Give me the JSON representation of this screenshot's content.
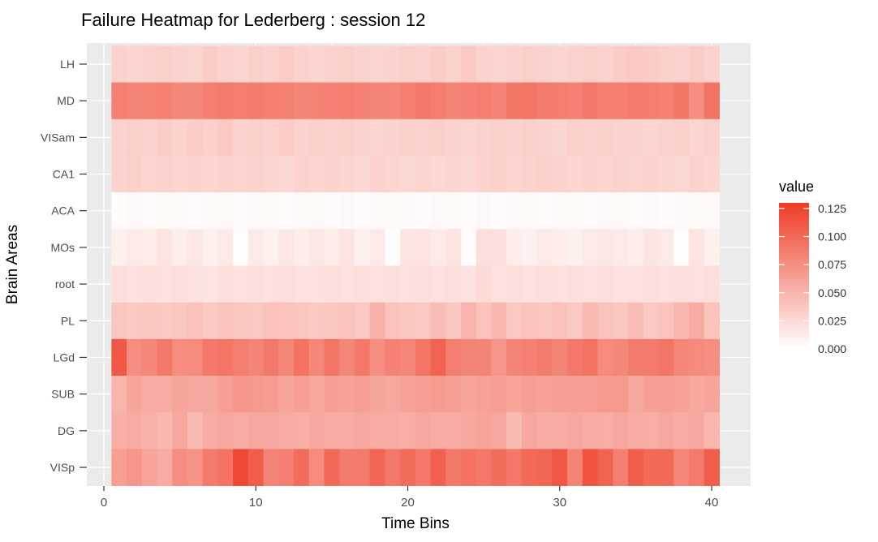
{
  "chart_data": {
    "type": "heatmap",
    "title": "Failure Heatmap for Lederberg : session 12",
    "xlabel": "Time Bins",
    "ylabel": "Brain Areas",
    "x": [
      1,
      2,
      3,
      4,
      5,
      6,
      7,
      8,
      9,
      10,
      11,
      12,
      13,
      14,
      15,
      16,
      17,
      18,
      19,
      20,
      21,
      22,
      23,
      24,
      25,
      26,
      27,
      28,
      29,
      30,
      31,
      32,
      33,
      34,
      35,
      36,
      37,
      38,
      39,
      40
    ],
    "xlim": [
      0,
      41
    ],
    "x_ticks": [
      0,
      10,
      20,
      30,
      40
    ],
    "rows": [
      "LH",
      "MD",
      "VISam",
      "CA1",
      "ACA",
      "MOs",
      "root",
      "PL",
      "LGd",
      "SUB",
      "DG",
      "VISp"
    ],
    "values": {
      "LH": [
        0.03,
        0.028,
        0.03,
        0.032,
        0.03,
        0.028,
        0.034,
        0.03,
        0.028,
        0.032,
        0.03,
        0.034,
        0.03,
        0.028,
        0.03,
        0.032,
        0.03,
        0.028,
        0.03,
        0.032,
        0.03,
        0.034,
        0.03,
        0.036,
        0.03,
        0.028,
        0.03,
        0.032,
        0.03,
        0.028,
        0.03,
        0.032,
        0.03,
        0.034,
        0.036,
        0.034,
        0.032,
        0.03,
        0.034,
        0.03
      ],
      "MD": [
        0.085,
        0.082,
        0.083,
        0.085,
        0.08,
        0.081,
        0.086,
        0.088,
        0.087,
        0.088,
        0.086,
        0.085,
        0.082,
        0.083,
        0.084,
        0.086,
        0.084,
        0.082,
        0.081,
        0.086,
        0.09,
        0.087,
        0.082,
        0.084,
        0.086,
        0.082,
        0.091,
        0.092,
        0.088,
        0.087,
        0.084,
        0.09,
        0.086,
        0.086,
        0.088,
        0.087,
        0.085,
        0.091,
        0.076,
        0.093
      ],
      "VISam": [
        0.03,
        0.032,
        0.03,
        0.034,
        0.03,
        0.034,
        0.032,
        0.036,
        0.03,
        0.032,
        0.03,
        0.034,
        0.03,
        0.032,
        0.03,
        0.032,
        0.03,
        0.028,
        0.03,
        0.032,
        0.03,
        0.032,
        0.03,
        0.028,
        0.03,
        0.032,
        0.03,
        0.032,
        0.03,
        0.028,
        0.032,
        0.03,
        0.032,
        0.03,
        0.03,
        0.028,
        0.03,
        0.032,
        0.028,
        0.03
      ],
      "CA1": [
        0.03,
        0.032,
        0.028,
        0.03,
        0.028,
        0.03,
        0.028,
        0.03,
        0.028,
        0.03,
        0.028,
        0.026,
        0.03,
        0.028,
        0.03,
        0.028,
        0.026,
        0.03,
        0.028,
        0.026,
        0.028,
        0.026,
        0.028,
        0.026,
        0.03,
        0.032,
        0.028,
        0.03,
        0.032,
        0.03,
        0.028,
        0.03,
        0.028,
        0.03,
        0.028,
        0.03,
        0.028,
        0.026,
        0.03,
        0.028
      ],
      "ACA": [
        0.003,
        0.004,
        0.003,
        0.005,
        0.004,
        0.003,
        0.004,
        0.005,
        0.003,
        0.004,
        0.005,
        0.003,
        0.004,
        0.005,
        0.003,
        0.004,
        0.003,
        0.004,
        0.005,
        0.004,
        0.003,
        0.004,
        0.005,
        0.003,
        0.004,
        0.003,
        0.004,
        0.005,
        0.003,
        0.004,
        0.005,
        0.003,
        0.004,
        0.005,
        0.003,
        0.004,
        0.003,
        0.004,
        0.005,
        0.004
      ],
      "MOs": [
        0.01,
        0.014,
        0.012,
        0.018,
        0.012,
        0.016,
        0.01,
        0.014,
        0.002,
        0.014,
        0.01,
        0.016,
        0.012,
        0.016,
        0.012,
        0.018,
        0.01,
        0.014,
        0.002,
        0.018,
        0.018,
        0.014,
        0.018,
        0.002,
        0.022,
        0.022,
        0.012,
        0.01,
        0.014,
        0.012,
        0.01,
        0.014,
        0.016,
        0.014,
        0.012,
        0.018,
        0.014,
        0.002,
        0.018,
        0.01
      ],
      "root": [
        0.022,
        0.02,
        0.022,
        0.02,
        0.022,
        0.02,
        0.018,
        0.022,
        0.02,
        0.022,
        0.02,
        0.022,
        0.02,
        0.02,
        0.022,
        0.02,
        0.022,
        0.02,
        0.022,
        0.02,
        0.022,
        0.02,
        0.022,
        0.02,
        0.024,
        0.02,
        0.022,
        0.02,
        0.022,
        0.02,
        0.022,
        0.02,
        0.022,
        0.02,
        0.02,
        0.022,
        0.02,
        0.022,
        0.02,
        0.022
      ],
      "PL": [
        0.038,
        0.036,
        0.038,
        0.036,
        0.038,
        0.042,
        0.036,
        0.04,
        0.038,
        0.036,
        0.042,
        0.04,
        0.038,
        0.036,
        0.038,
        0.04,
        0.036,
        0.052,
        0.04,
        0.038,
        0.036,
        0.044,
        0.038,
        0.05,
        0.04,
        0.048,
        0.036,
        0.04,
        0.038,
        0.042,
        0.036,
        0.046,
        0.04,
        0.038,
        0.044,
        0.036,
        0.04,
        0.048,
        0.056,
        0.04
      ],
      "LGd": [
        0.112,
        0.076,
        0.08,
        0.09,
        0.076,
        0.078,
        0.09,
        0.092,
        0.086,
        0.082,
        0.09,
        0.08,
        0.094,
        0.08,
        0.092,
        0.08,
        0.09,
        0.076,
        0.084,
        0.08,
        0.092,
        0.104,
        0.086,
        0.082,
        0.082,
        0.07,
        0.082,
        0.084,
        0.088,
        0.082,
        0.09,
        0.094,
        0.078,
        0.08,
        0.088,
        0.088,
        0.092,
        0.08,
        0.078,
        0.076
      ],
      "SUB": [
        0.05,
        0.06,
        0.056,
        0.056,
        0.06,
        0.058,
        0.058,
        0.064,
        0.07,
        0.068,
        0.066,
        0.06,
        0.064,
        0.058,
        0.064,
        0.062,
        0.064,
        0.06,
        0.058,
        0.062,
        0.064,
        0.066,
        0.064,
        0.06,
        0.062,
        0.064,
        0.06,
        0.064,
        0.062,
        0.064,
        0.064,
        0.064,
        0.068,
        0.068,
        0.058,
        0.064,
        0.064,
        0.062,
        0.058,
        0.06
      ],
      "DG": [
        0.054,
        0.056,
        0.052,
        0.048,
        0.058,
        0.046,
        0.056,
        0.058,
        0.056,
        0.058,
        0.058,
        0.056,
        0.054,
        0.058,
        0.056,
        0.056,
        0.058,
        0.056,
        0.056,
        0.054,
        0.058,
        0.056,
        0.056,
        0.058,
        0.06,
        0.058,
        0.046,
        0.058,
        0.056,
        0.056,
        0.058,
        0.056,
        0.054,
        0.058,
        0.056,
        0.054,
        0.058,
        0.056,
        0.058,
        0.048
      ],
      "VISp": [
        0.064,
        0.07,
        0.06,
        0.056,
        0.076,
        0.072,
        0.088,
        0.094,
        0.122,
        0.108,
        0.082,
        0.086,
        0.098,
        0.078,
        0.1,
        0.088,
        0.088,
        0.102,
        0.09,
        0.098,
        0.09,
        0.106,
        0.09,
        0.094,
        0.09,
        0.098,
        0.09,
        0.1,
        0.102,
        0.112,
        0.082,
        0.114,
        0.104,
        0.086,
        0.108,
        0.1,
        0.1,
        0.08,
        0.088,
        0.108
      ]
    },
    "legend": {
      "title": "value",
      "placement": "right",
      "ticks": [
        "0.125",
        "0.100",
        "0.075",
        "0.050",
        "0.025",
        "0.000"
      ],
      "tick_values": [
        0.125,
        0.1,
        0.075,
        0.05,
        0.025,
        0.0
      ],
      "range": [
        0,
        0.13
      ]
    },
    "colors": {
      "low": "#ffffff",
      "high": "#ee3c26",
      "panel_background": "#ebebeb",
      "grid": "#ffffff"
    },
    "grid": true
  }
}
